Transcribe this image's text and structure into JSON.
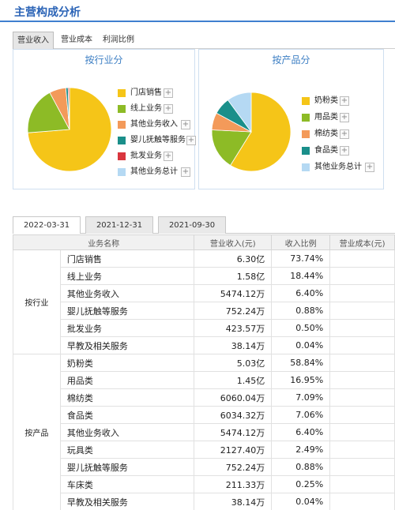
{
  "title": "主营构成分析",
  "tabs": [
    "营业收入",
    "营业成本",
    "利润比例"
  ],
  "panels": {
    "industry": {
      "title": "按行业分",
      "legend": [
        {
          "label": "门店销售",
          "color": "#f5c518"
        },
        {
          "label": "线上业务",
          "color": "#8dbb26"
        },
        {
          "label": "其他业务收入",
          "color": "#f39a5a"
        },
        {
          "label": "婴儿抚触等服务",
          "color": "#1a8f8a"
        },
        {
          "label": "批发业务",
          "color": "#d9363e"
        },
        {
          "label": "其他业务总计",
          "color": "#b5d9f3"
        }
      ],
      "slices": [
        73.74,
        18.44,
        6.4,
        0.88,
        0.5,
        0.04
      ]
    },
    "product": {
      "title": "按产品分",
      "legend": [
        {
          "label": "奶粉类",
          "color": "#f5c518"
        },
        {
          "label": "用品类",
          "color": "#8dbb26"
        },
        {
          "label": "棉纺类",
          "color": "#f39a5a"
        },
        {
          "label": "食品类",
          "color": "#1a8f8a"
        },
        {
          "label": "其他业务总计",
          "color": "#b5d9f3"
        }
      ],
      "slices": [
        58.84,
        16.95,
        7.09,
        7.06,
        10.06
      ]
    }
  },
  "date_tabs": [
    "2022-03-31",
    "2021-12-31",
    "2021-09-30"
  ],
  "table": {
    "headers": [
      "业务名称",
      "营业收入(元)",
      "收入比例",
      "营业成本(元)"
    ],
    "groups": [
      {
        "name": "按行业",
        "rows": [
          {
            "name": "门店销售",
            "revenue": "6.30亿",
            "ratio": "73.74%"
          },
          {
            "name": "线上业务",
            "revenue": "1.58亿",
            "ratio": "18.44%"
          },
          {
            "name": "其他业务收入",
            "revenue": "5474.12万",
            "ratio": "6.40%"
          },
          {
            "name": "婴儿抚触等服务",
            "revenue": "752.24万",
            "ratio": "0.88%"
          },
          {
            "name": "批发业务",
            "revenue": "423.57万",
            "ratio": "0.50%"
          },
          {
            "name": "早教及相关服务",
            "revenue": "38.14万",
            "ratio": "0.04%"
          }
        ]
      },
      {
        "name": "按产品",
        "rows": [
          {
            "name": "奶粉类",
            "revenue": "5.03亿",
            "ratio": "58.84%"
          },
          {
            "name": "用品类",
            "revenue": "1.45亿",
            "ratio": "16.95%"
          },
          {
            "name": "棉纺类",
            "revenue": "6060.04万",
            "ratio": "7.09%"
          },
          {
            "name": "食品类",
            "revenue": "6034.32万",
            "ratio": "7.06%"
          },
          {
            "name": "其他业务收入",
            "revenue": "5474.12万",
            "ratio": "6.40%"
          },
          {
            "name": "玩具类",
            "revenue": "2127.40万",
            "ratio": "2.49%"
          },
          {
            "name": "婴儿抚触等服务",
            "revenue": "752.24万",
            "ratio": "0.88%"
          },
          {
            "name": "车床类",
            "revenue": "211.33万",
            "ratio": "0.25%"
          },
          {
            "name": "早教及相关服务",
            "revenue": "38.14万",
            "ratio": "0.04%"
          }
        ]
      }
    ]
  }
}
